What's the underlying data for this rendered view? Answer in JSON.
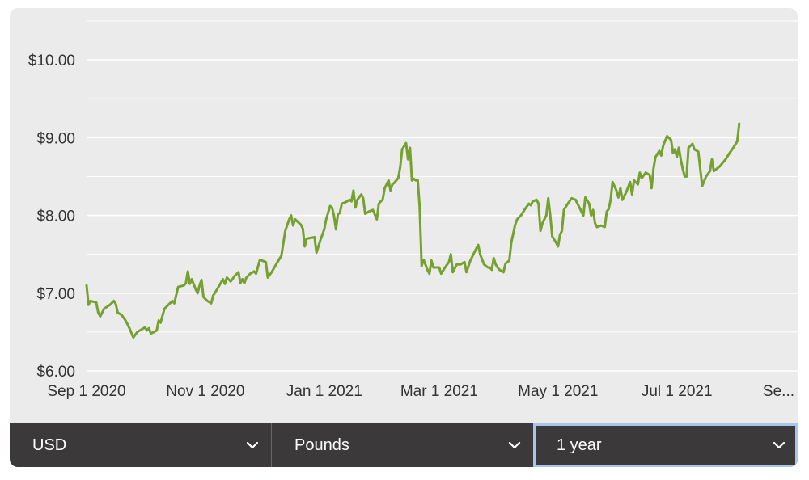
{
  "chart_data": {
    "type": "line",
    "title": "",
    "xlabel": "",
    "ylabel": "",
    "ylim": [
      6.0,
      10.5
    ],
    "y_ticks": [
      "$6.00",
      "$7.00",
      "$8.00",
      "$9.00",
      "$10.00"
    ],
    "y_tick_values": [
      6,
      7,
      8,
      9,
      10
    ],
    "x_ticks": [
      "Sep 1 2020",
      "Nov 1 2020",
      "Jan 1 2021",
      "Mar 1 2021",
      "May 1 2021",
      "Jul 1 2021",
      "Se..."
    ],
    "x_tick_dates": [
      "2020-09-01",
      "2020-11-01",
      "2021-01-01",
      "2021-03-01",
      "2021-05-01",
      "2021-07-01",
      "2021-09-01"
    ],
    "xlim": [
      "2020-09-01",
      "2021-09-01"
    ],
    "grid": true,
    "line_color": "#76a030",
    "series": [
      {
        "name": "",
        "points": [
          [
            "2020-09-01",
            7.1
          ],
          [
            "2020-09-02",
            6.85
          ],
          [
            "2020-09-03",
            6.9
          ],
          [
            "2020-09-06",
            6.88
          ],
          [
            "2020-09-07",
            6.75
          ],
          [
            "2020-09-08",
            6.7
          ],
          [
            "2020-09-10",
            6.8
          ],
          [
            "2020-09-13",
            6.85
          ],
          [
            "2020-09-15",
            6.9
          ],
          [
            "2020-09-16",
            6.86
          ],
          [
            "2020-09-17",
            6.75
          ],
          [
            "2020-09-19",
            6.72
          ],
          [
            "2020-09-21",
            6.65
          ],
          [
            "2020-09-23",
            6.55
          ],
          [
            "2020-09-25",
            6.43
          ],
          [
            "2020-09-27",
            6.5
          ],
          [
            "2020-09-29",
            6.53
          ],
          [
            "2020-10-01",
            6.56
          ],
          [
            "2020-10-02",
            6.52
          ],
          [
            "2020-10-03",
            6.55
          ],
          [
            "2020-10-04",
            6.48
          ],
          [
            "2020-10-07",
            6.52
          ],
          [
            "2020-10-08",
            6.65
          ],
          [
            "2020-10-09",
            6.62
          ],
          [
            "2020-10-11",
            6.8
          ],
          [
            "2020-10-13",
            6.85
          ],
          [
            "2020-10-15",
            6.9
          ],
          [
            "2020-10-16",
            6.87
          ],
          [
            "2020-10-18",
            7.08
          ],
          [
            "2020-10-21",
            7.1
          ],
          [
            "2020-10-22",
            7.13
          ],
          [
            "2020-10-23",
            7.28
          ],
          [
            "2020-10-24",
            7.12
          ],
          [
            "2020-10-25",
            7.18
          ],
          [
            "2020-10-27",
            7.05
          ],
          [
            "2020-10-28",
            7.0
          ],
          [
            "2020-10-29",
            7.1
          ],
          [
            "2020-10-30",
            7.17
          ],
          [
            "2020-10-31",
            6.95
          ],
          [
            "2020-11-02",
            6.9
          ],
          [
            "2020-11-04",
            6.87
          ],
          [
            "2020-11-05",
            6.97
          ],
          [
            "2020-11-07",
            7.05
          ],
          [
            "2020-11-10",
            7.18
          ],
          [
            "2020-11-11",
            7.12
          ],
          [
            "2020-11-12",
            7.2
          ],
          [
            "2020-11-14",
            7.15
          ],
          [
            "2020-11-16",
            7.22
          ],
          [
            "2020-11-18",
            7.27
          ],
          [
            "2020-11-19",
            7.13
          ],
          [
            "2020-11-20",
            7.18
          ],
          [
            "2020-11-21",
            7.13
          ],
          [
            "2020-11-22",
            7.2
          ],
          [
            "2020-11-24",
            7.25
          ],
          [
            "2020-11-26",
            7.28
          ],
          [
            "2020-11-27",
            7.25
          ],
          [
            "2020-11-29",
            7.43
          ],
          [
            "2020-12-02",
            7.4
          ],
          [
            "2020-12-03",
            7.2
          ],
          [
            "2020-12-05",
            7.27
          ],
          [
            "2020-12-08",
            7.4
          ],
          [
            "2020-12-10",
            7.48
          ],
          [
            "2020-12-12",
            7.8
          ],
          [
            "2020-12-14",
            7.95
          ],
          [
            "2020-12-15",
            8.0
          ],
          [
            "2020-12-16",
            7.87
          ],
          [
            "2020-12-17",
            7.95
          ],
          [
            "2020-12-20",
            7.88
          ],
          [
            "2020-12-21",
            7.83
          ],
          [
            "2020-12-22",
            7.6
          ],
          [
            "2020-12-23",
            7.7
          ],
          [
            "2020-12-27",
            7.72
          ],
          [
            "2020-12-28",
            7.52
          ],
          [
            "2020-12-30",
            7.68
          ],
          [
            "2021-01-01",
            7.82
          ],
          [
            "2021-01-02",
            7.95
          ],
          [
            "2021-01-04",
            8.12
          ],
          [
            "2021-01-05",
            8.1
          ],
          [
            "2021-01-06",
            8.0
          ],
          [
            "2021-01-07",
            7.82
          ],
          [
            "2021-01-08",
            8.02
          ],
          [
            "2021-01-09",
            8.03
          ],
          [
            "2021-01-10",
            8.15
          ],
          [
            "2021-01-12",
            8.17
          ],
          [
            "2021-01-14",
            8.2
          ],
          [
            "2021-01-15",
            8.18
          ],
          [
            "2021-01-16",
            8.32
          ],
          [
            "2021-01-17",
            8.1
          ],
          [
            "2021-01-18",
            8.2
          ],
          [
            "2021-01-20",
            8.27
          ],
          [
            "2021-01-21",
            8.22
          ],
          [
            "2021-01-22",
            8.02
          ],
          [
            "2021-01-24",
            8.05
          ],
          [
            "2021-01-26",
            8.07
          ],
          [
            "2021-01-28",
            7.95
          ],
          [
            "2021-01-29",
            8.15
          ],
          [
            "2021-01-30",
            8.18
          ],
          [
            "2021-01-31",
            8.2
          ],
          [
            "2021-02-01",
            8.35
          ],
          [
            "2021-02-03",
            8.45
          ],
          [
            "2021-02-04",
            8.32
          ],
          [
            "2021-02-05",
            8.4
          ],
          [
            "2021-02-06",
            8.42
          ],
          [
            "2021-02-08",
            8.48
          ],
          [
            "2021-02-09",
            8.62
          ],
          [
            "2021-02-10",
            8.85
          ],
          [
            "2021-02-12",
            8.93
          ],
          [
            "2021-02-13",
            8.72
          ],
          [
            "2021-02-14",
            8.87
          ],
          [
            "2021-02-15",
            8.45
          ],
          [
            "2021-02-16",
            8.47
          ],
          [
            "2021-02-17",
            8.45
          ],
          [
            "2021-02-18",
            8.45
          ],
          [
            "2021-02-19",
            8.1
          ],
          [
            "2021-02-20",
            7.35
          ],
          [
            "2021-02-21",
            7.43
          ],
          [
            "2021-02-23",
            7.3
          ],
          [
            "2021-02-24",
            7.25
          ],
          [
            "2021-02-25",
            7.42
          ],
          [
            "2021-02-26",
            7.33
          ],
          [
            "2021-03-01",
            7.33
          ],
          [
            "2021-03-02",
            7.25
          ],
          [
            "2021-03-04",
            7.33
          ],
          [
            "2021-03-06",
            7.4
          ],
          [
            "2021-03-07",
            7.5
          ],
          [
            "2021-03-08",
            7.27
          ],
          [
            "2021-03-10",
            7.37
          ],
          [
            "2021-03-12",
            7.37
          ],
          [
            "2021-03-14",
            7.4
          ],
          [
            "2021-03-15",
            7.27
          ],
          [
            "2021-03-17",
            7.42
          ],
          [
            "2021-03-19",
            7.52
          ],
          [
            "2021-03-21",
            7.62
          ],
          [
            "2021-03-22",
            7.5
          ],
          [
            "2021-03-24",
            7.37
          ],
          [
            "2021-03-26",
            7.33
          ],
          [
            "2021-03-27",
            7.33
          ],
          [
            "2021-03-28",
            7.3
          ],
          [
            "2021-03-29",
            7.45
          ],
          [
            "2021-03-30",
            7.37
          ],
          [
            "2021-03-31",
            7.33
          ],
          [
            "2021-04-01",
            7.3
          ],
          [
            "2021-04-03",
            7.27
          ],
          [
            "2021-04-04",
            7.38
          ],
          [
            "2021-04-06",
            7.42
          ],
          [
            "2021-04-07",
            7.65
          ],
          [
            "2021-04-09",
            7.88
          ],
          [
            "2021-04-10",
            7.95
          ],
          [
            "2021-04-12",
            8.0
          ],
          [
            "2021-04-14",
            8.08
          ],
          [
            "2021-04-16",
            8.15
          ],
          [
            "2021-04-17",
            8.13
          ],
          [
            "2021-04-18",
            8.18
          ],
          [
            "2021-04-20",
            8.2
          ],
          [
            "2021-04-21",
            8.15
          ],
          [
            "2021-04-22",
            7.8
          ],
          [
            "2021-04-23",
            7.9
          ],
          [
            "2021-04-25",
            8.0
          ],
          [
            "2021-04-26",
            8.22
          ],
          [
            "2021-04-27",
            8.0
          ],
          [
            "2021-04-28",
            7.73
          ],
          [
            "2021-04-30",
            7.65
          ],
          [
            "2021-05-01",
            7.6
          ],
          [
            "2021-05-02",
            7.75
          ],
          [
            "2021-05-03",
            7.8
          ],
          [
            "2021-05-04",
            8.07
          ],
          [
            "2021-05-06",
            8.15
          ],
          [
            "2021-05-08",
            8.22
          ],
          [
            "2021-05-10",
            8.2
          ],
          [
            "2021-05-12",
            8.1
          ],
          [
            "2021-05-14",
            8.0
          ],
          [
            "2021-05-15",
            8.23
          ],
          [
            "2021-05-17",
            8.15
          ],
          [
            "2021-05-18",
            8.0
          ],
          [
            "2021-05-19",
            8.07
          ],
          [
            "2021-05-20",
            7.9
          ],
          [
            "2021-05-21",
            7.85
          ],
          [
            "2021-05-23",
            7.87
          ],
          [
            "2021-05-25",
            7.85
          ],
          [
            "2021-05-26",
            8.05
          ],
          [
            "2021-05-27",
            8.08
          ],
          [
            "2021-05-28",
            8.2
          ],
          [
            "2021-05-29",
            8.43
          ],
          [
            "2021-05-31",
            8.32
          ],
          [
            "2021-06-01",
            8.23
          ],
          [
            "2021-06-02",
            8.35
          ],
          [
            "2021-06-03",
            8.2
          ],
          [
            "2021-06-05",
            8.3
          ],
          [
            "2021-06-07",
            8.43
          ],
          [
            "2021-06-08",
            8.27
          ],
          [
            "2021-06-09",
            8.45
          ],
          [
            "2021-06-11",
            8.4
          ],
          [
            "2021-06-12",
            8.55
          ],
          [
            "2021-06-13",
            8.48
          ],
          [
            "2021-06-15",
            8.55
          ],
          [
            "2021-06-17",
            8.52
          ],
          [
            "2021-06-18",
            8.35
          ],
          [
            "2021-06-19",
            8.6
          ],
          [
            "2021-06-20",
            8.75
          ],
          [
            "2021-06-22",
            8.83
          ],
          [
            "2021-06-23",
            8.77
          ],
          [
            "2021-06-24",
            8.9
          ],
          [
            "2021-06-26",
            9.02
          ],
          [
            "2021-06-28",
            8.97
          ],
          [
            "2021-06-29",
            8.8
          ],
          [
            "2021-06-30",
            8.85
          ],
          [
            "2021-07-01",
            8.75
          ],
          [
            "2021-07-02",
            8.87
          ],
          [
            "2021-07-03",
            8.72
          ],
          [
            "2021-07-04",
            8.6
          ],
          [
            "2021-07-05",
            8.5
          ],
          [
            "2021-07-06",
            8.5
          ],
          [
            "2021-07-07",
            8.87
          ],
          [
            "2021-07-09",
            8.92
          ],
          [
            "2021-07-10",
            8.85
          ],
          [
            "2021-07-12",
            8.82
          ],
          [
            "2021-07-14",
            8.38
          ],
          [
            "2021-07-16",
            8.5
          ],
          [
            "2021-07-18",
            8.57
          ],
          [
            "2021-07-19",
            8.72
          ],
          [
            "2021-07-20",
            8.57
          ],
          [
            "2021-07-23",
            8.63
          ],
          [
            "2021-07-26",
            8.72
          ],
          [
            "2021-07-28",
            8.8
          ],
          [
            "2021-07-30",
            8.87
          ],
          [
            "2021-08-01",
            8.95
          ],
          [
            "2021-08-02",
            9.18
          ]
        ]
      }
    ]
  },
  "controls": {
    "currency": "USD",
    "unit": "Pounds",
    "range": "1 year"
  },
  "colors": {
    "line": "#76a030",
    "toolbar": "#3b3939",
    "background": "#ebebeb",
    "focus_ring": "#a9c6ea"
  }
}
